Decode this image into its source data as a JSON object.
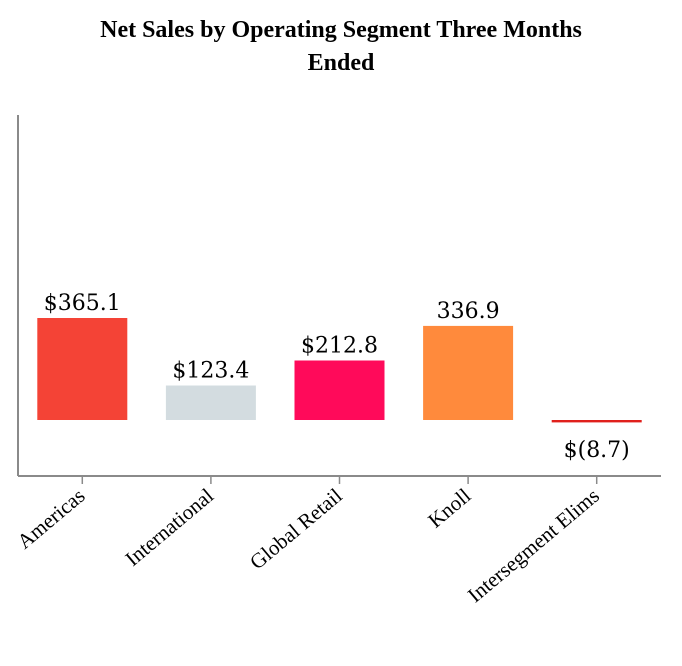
{
  "title_line1": "Net Sales by Operating Segment Three Months",
  "title_line2": "Ended",
  "chart_data": {
    "type": "bar",
    "title": "Net Sales by Operating Segment Three Months Ended",
    "categories": [
      "Americas",
      "International",
      "Global Retail",
      "Knoll",
      "Intersegment Elims"
    ],
    "values": [
      365.1,
      123.4,
      212.8,
      336.9,
      -8.7
    ],
    "data_labels": [
      "$365.1",
      "$123.4",
      "$212.8",
      "336.9",
      "$(8.7)"
    ],
    "colors": [
      "#f44336",
      "#d3dce0",
      "#ff0a5a",
      "#ff8a3c",
      "#e0201c"
    ],
    "xlabel": "",
    "ylabel": "",
    "grid": false,
    "legend": "none"
  }
}
